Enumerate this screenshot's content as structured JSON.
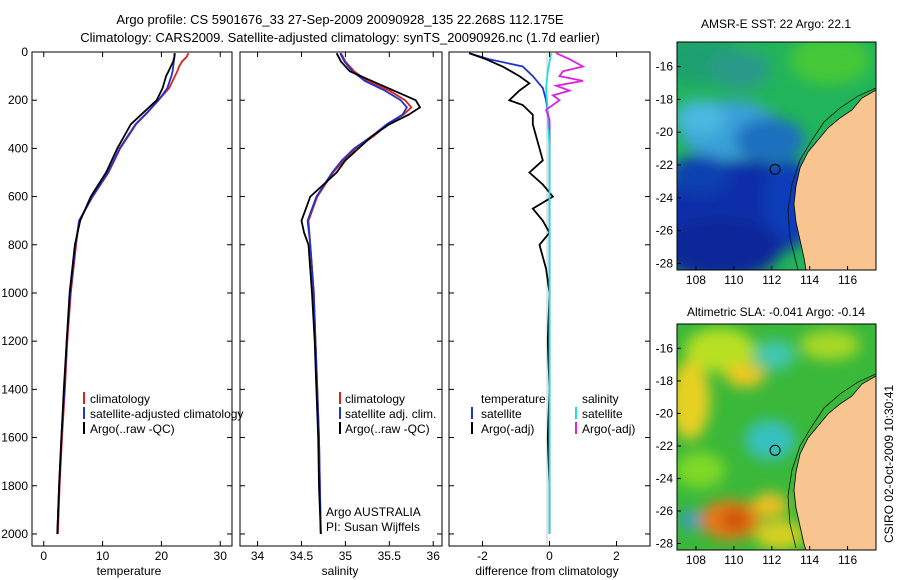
{
  "header": {
    "line1": "Argo profile: CS 5901676_33 27-Sep-2009 20090928_135 22.268S 112.175E",
    "line2": "Climatology: CARS2009. Satellite-adjusted climatology: synTS_20090926.nc (1.7d earlier)"
  },
  "colors": {
    "climatology": "#e0201c",
    "satellite": "#2233cc",
    "argo": "#000000",
    "argo_sal": "#dd22dd",
    "sat_sal": "#22dddd",
    "land": "#f8c48f"
  },
  "chart_data": [
    {
      "type": "line",
      "id": "temperature",
      "xlabel": "temperature",
      "xlim": [
        -2,
        32
      ],
      "ylim": [
        2050,
        0
      ],
      "xticks": [
        0,
        10,
        20,
        30
      ],
      "yticks": [
        0,
        200,
        400,
        600,
        800,
        1000,
        1200,
        1400,
        1600,
        1800,
        2000
      ],
      "legend": [
        "climatology",
        "satellite-adjusted climatology",
        "Argo(..raw -QC)"
      ],
      "series": [
        {
          "name": "climatology",
          "color": "#e0201c",
          "depth": [
            5,
            20,
            40,
            60,
            80,
            100,
            150,
            200,
            250,
            300,
            400,
            500,
            600,
            700,
            800,
            1000,
            1200,
            1400,
            1600,
            1800,
            2000
          ],
          "values": [
            24.6,
            24.3,
            23.5,
            23.0,
            22.7,
            22.3,
            21.3,
            19.5,
            17.7,
            15.7,
            13.0,
            11.0,
            8.3,
            6.0,
            5.5,
            4.6,
            4.0,
            3.6,
            3.1,
            2.7,
            2.4
          ]
        },
        {
          "name": "satellite",
          "color": "#2233cc",
          "depth": [
            5,
            20,
            40,
            60,
            80,
            100,
            150,
            200,
            250,
            300,
            400,
            500,
            600,
            700,
            800,
            1000,
            1200,
            1400,
            1600,
            1800,
            2000
          ],
          "values": [
            22.2,
            22.2,
            22.1,
            22.0,
            21.9,
            21.7,
            21.0,
            19.5,
            17.6,
            15.6,
            12.9,
            10.9,
            8.3,
            6.0,
            5.4,
            4.5,
            3.9,
            3.5,
            3.0,
            2.6,
            2.3
          ]
        },
        {
          "name": "Argo",
          "color": "#000000",
          "depth": [
            5,
            20,
            40,
            60,
            80,
            100,
            150,
            200,
            250,
            300,
            400,
            500,
            600,
            700,
            800,
            1000,
            1200,
            1400,
            1600,
            1800,
            2000
          ],
          "values": [
            22.3,
            22.2,
            22.0,
            21.6,
            21.2,
            20.8,
            20.2,
            19.2,
            17.0,
            14.8,
            12.5,
            10.6,
            8.0,
            6.2,
            5.3,
            4.4,
            3.9,
            3.4,
            3.0,
            2.6,
            2.3
          ]
        }
      ]
    },
    {
      "type": "line",
      "id": "salinity",
      "xlabel": "salinity",
      "xlim": [
        33.8,
        36.1
      ],
      "ylim": [
        2050,
        0
      ],
      "xticks": [
        34,
        34.5,
        35,
        35.5,
        36
      ],
      "legend": [
        "climatology",
        "satellite adj. clim.",
        "Argo(..raw -QC)"
      ],
      "annotations": [
        "Argo AUSTRALIA",
        "PI: Susan Wijffels"
      ],
      "series": [
        {
          "name": "climatology",
          "color": "#e0201c",
          "depth": [
            5,
            40,
            80,
            120,
            160,
            200,
            230,
            260,
            300,
            350,
            400,
            450,
            500,
            600,
            700,
            800,
            1000,
            1200,
            1400,
            1600,
            1800,
            2000
          ],
          "values": [
            34.95,
            35.0,
            35.1,
            35.25,
            35.5,
            35.68,
            35.75,
            35.66,
            35.48,
            35.32,
            35.12,
            34.98,
            34.86,
            34.68,
            34.58,
            34.6,
            34.64,
            34.66,
            34.68,
            34.7,
            34.71,
            34.72
          ]
        },
        {
          "name": "satellite",
          "color": "#2233cc",
          "depth": [
            5,
            40,
            80,
            120,
            160,
            200,
            230,
            260,
            300,
            350,
            400,
            450,
            500,
            600,
            700,
            800,
            1000,
            1200,
            1400,
            1600,
            1800,
            2000
          ],
          "values": [
            34.94,
            34.99,
            35.08,
            35.22,
            35.45,
            35.63,
            35.7,
            35.65,
            35.47,
            35.3,
            35.1,
            34.96,
            34.85,
            34.67,
            34.57,
            34.6,
            34.64,
            34.66,
            34.68,
            34.7,
            34.71,
            34.72
          ]
        },
        {
          "name": "Argo",
          "color": "#000000",
          "depth": [
            5,
            40,
            80,
            120,
            160,
            200,
            230,
            260,
            300,
            350,
            400,
            450,
            500,
            600,
            700,
            750,
            800,
            1000,
            1200,
            1400,
            1600,
            1800,
            2000
          ],
          "values": [
            34.9,
            34.95,
            35.05,
            35.3,
            35.55,
            35.8,
            35.85,
            35.72,
            35.5,
            35.3,
            35.15,
            35.0,
            34.9,
            34.6,
            34.5,
            34.53,
            34.58,
            34.62,
            34.65,
            34.67,
            34.69,
            34.7,
            34.72
          ]
        }
      ]
    },
    {
      "type": "line",
      "id": "difference",
      "xlabel": "difference from climatology",
      "xlim": [
        -3,
        3
      ],
      "ylim": [
        2050,
        0
      ],
      "xticks": [
        -2,
        0,
        2
      ],
      "legend": {
        "temperature": [
          "satellite",
          "Argo(-adj)"
        ],
        "salinity": [
          "satellite",
          "Argo(-adj)"
        ],
        "headers": [
          "temperature",
          "salinity"
        ]
      },
      "series": [
        {
          "name": "temperature satellite",
          "color": "#2233cc",
          "depth": [
            5,
            30,
            60,
            100,
            150,
            200,
            300,
            400,
            600,
            800,
            1000,
            1400,
            2000
          ],
          "values": [
            -2.4,
            -1.8,
            -0.8,
            -0.5,
            -0.2,
            -0.1,
            0.0,
            0.0,
            0.0,
            0.0,
            0.0,
            0.0,
            0.0
          ]
        },
        {
          "name": "temperature Argo(-adj)",
          "color": "#000000",
          "depth": [
            5,
            30,
            60,
            100,
            130,
            160,
            200,
            220,
            260,
            300,
            350,
            400,
            450,
            500,
            550,
            600,
            650,
            700,
            750,
            800,
            900,
            1000,
            1200,
            1400,
            1600,
            1800,
            2000
          ],
          "values": [
            -2.4,
            -1.9,
            -1.4,
            -0.9,
            -0.6,
            -0.9,
            -1.2,
            -0.8,
            -0.5,
            -0.5,
            -0.4,
            -0.3,
            -0.2,
            -0.6,
            -0.2,
            0.1,
            -0.5,
            -0.2,
            0.0,
            -0.3,
            -0.1,
            0.0,
            -0.05,
            0.0,
            -0.05,
            0.0,
            0.0
          ]
        },
        {
          "name": "salinity satellite",
          "color": "#22dddd",
          "depth": [
            5,
            40,
            80,
            150,
            250,
            400,
            600,
            800,
            1000,
            1400,
            2000
          ],
          "values": [
            0.05,
            0.0,
            -0.05,
            -0.1,
            -0.05,
            0.0,
            0.0,
            0.0,
            0.0,
            0.0,
            0.0
          ]
        },
        {
          "name": "salinity Argo(-adj)",
          "color": "#dd22dd",
          "depth": [
            5,
            30,
            60,
            80,
            100,
            120,
            140,
            160,
            180,
            200,
            240,
            280,
            320
          ],
          "values": [
            0.2,
            0.6,
            1.0,
            0.4,
            0.3,
            1.0,
            0.2,
            0.6,
            0.1,
            0.3,
            -0.1,
            0.0,
            0.0
          ]
        }
      ]
    },
    {
      "type": "heatmap",
      "id": "sst-map",
      "title": "AMSR-E SST: 22 Argo: 22.1",
      "xlim": [
        107,
        117.5
      ],
      "ylim": [
        -28.4,
        -14.5
      ],
      "xticks": [
        108,
        110,
        112,
        114,
        116
      ],
      "yticks": [
        -16,
        -18,
        -20,
        -22,
        -24,
        -26,
        -28
      ],
      "argo_position": {
        "lon": 112.175,
        "lat": -22.268
      }
    },
    {
      "type": "heatmap",
      "id": "sla-map",
      "title": "Altimetric SLA: -0.041 Argo: -0.14",
      "xlim": [
        107,
        117.5
      ],
      "ylim": [
        -28.4,
        -14.5
      ],
      "xticks": [
        108,
        110,
        112,
        114,
        116
      ],
      "yticks": [
        -16,
        -18,
        -20,
        -22,
        -24,
        -26,
        -28
      ],
      "argo_position": {
        "lon": 112.175,
        "lat": -22.268
      }
    }
  ],
  "footer": {
    "stamp": "CSIRO 02-Oct-2009 10:30:41"
  }
}
